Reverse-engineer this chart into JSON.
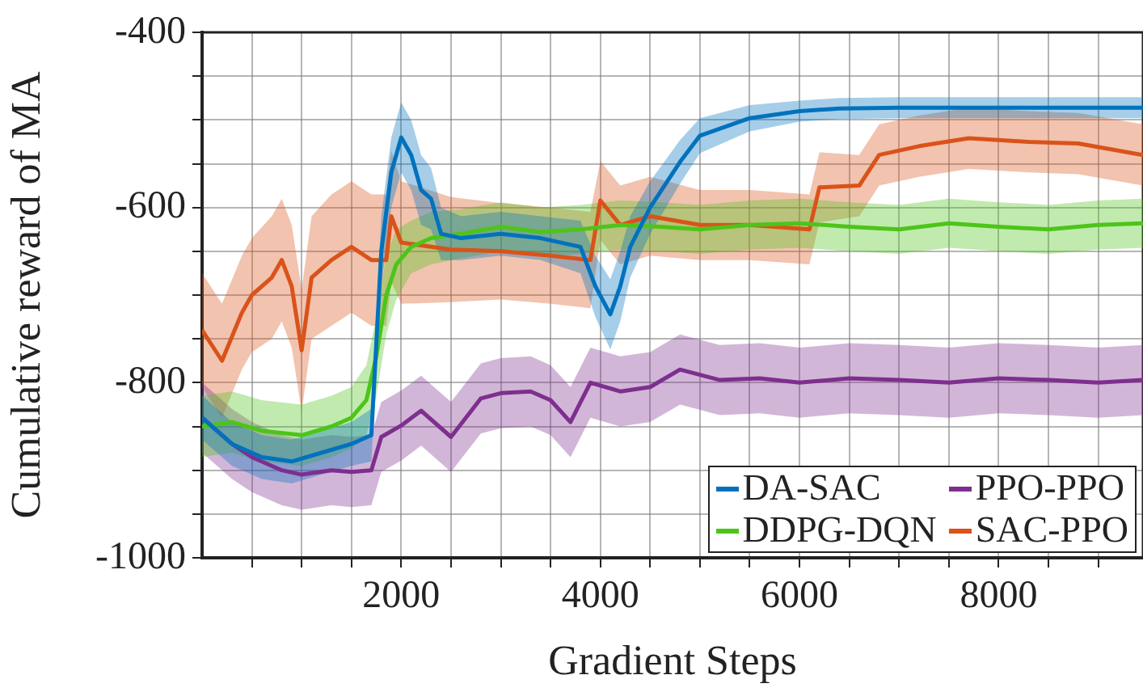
{
  "chart_data": {
    "type": "line",
    "xlabel": "Gradient Steps",
    "ylabel": "Cumulative reward of MA",
    "xlim": [
      0,
      9450
    ],
    "ylim": [
      -1000,
      -400
    ],
    "xticks": [
      {
        "value": 500,
        "label": null
      },
      {
        "value": 1000,
        "label": null
      },
      {
        "value": 1500,
        "label": null
      },
      2000,
      {
        "value": 2500,
        "label": null
      },
      {
        "value": 3000,
        "label": null
      },
      {
        "value": 3500,
        "label": null
      },
      4000,
      {
        "value": 4500,
        "label": null
      },
      {
        "value": 5000,
        "label": null
      },
      {
        "value": 5500,
        "label": null
      },
      6000,
      {
        "value": 6500,
        "label": null
      },
      {
        "value": 7000,
        "label": null
      },
      {
        "value": 7500,
        "label": null
      },
      8000,
      {
        "value": 8500,
        "label": null
      },
      {
        "value": 9000,
        "label": null
      }
    ],
    "yticks": [
      -1000,
      {
        "value": -950,
        "label": null
      },
      {
        "value": -900,
        "label": null
      },
      {
        "value": -850,
        "label": null
      },
      -800,
      {
        "value": -750,
        "label": null
      },
      {
        "value": -700,
        "label": null
      },
      {
        "value": -650,
        "label": null
      },
      -600,
      {
        "value": -550,
        "label": null
      },
      {
        "value": -500,
        "label": null
      },
      {
        "value": -450,
        "label": null
      },
      -400
    ],
    "grid": true,
    "legend": "bottom right",
    "series": [
      {
        "name": "DA-SAC",
        "color": "#0072bd",
        "x": [
          0,
          300,
          600,
          900,
          1200,
          1500,
          1700,
          1800,
          1900,
          2000,
          2100,
          2200,
          2300,
          2400,
          2600,
          3000,
          3400,
          3800,
          3950,
          4100,
          4200,
          4300,
          4500,
          4800,
          5000,
          5500,
          6000,
          6400,
          7000,
          8000,
          9000,
          9450
        ],
        "values": [
          -840,
          -870,
          -885,
          -890,
          -880,
          -870,
          -860,
          -650,
          -560,
          -520,
          -540,
          -580,
          -590,
          -630,
          -635,
          -630,
          -635,
          -645,
          -690,
          -722,
          -690,
          -645,
          -600,
          -548,
          -518,
          -498,
          -490,
          -487,
          -486,
          -486,
          -486,
          -486
        ],
        "lower": [
          -865,
          -895,
          -910,
          -915,
          -905,
          -895,
          -890,
          -690,
          -600,
          -560,
          -580,
          -620,
          -625,
          -660,
          -660,
          -655,
          -660,
          -675,
          -725,
          -762,
          -730,
          -680,
          -630,
          -573,
          -538,
          -513,
          -502,
          -499,
          -498,
          -498,
          -498,
          -498
        ],
        "upper": [
          -815,
          -845,
          -860,
          -865,
          -855,
          -845,
          -830,
          -610,
          -520,
          -480,
          -500,
          -540,
          -555,
          -600,
          -610,
          -605,
          -610,
          -615,
          -655,
          -682,
          -650,
          -610,
          -570,
          -523,
          -498,
          -483,
          -478,
          -475,
          -474,
          -474,
          -474,
          -474
        ]
      },
      {
        "name": "DDPG-DQN",
        "color": "#4dc41a",
        "x": [
          0,
          300,
          600,
          1000,
          1300,
          1500,
          1650,
          1750,
          1850,
          1950,
          2100,
          2300,
          2600,
          3000,
          3400,
          3800,
          4200,
          4600,
          5000,
          5500,
          6000,
          6500,
          7000,
          7500,
          8000,
          8500,
          9000,
          9450
        ],
        "values": [
          -850,
          -845,
          -855,
          -860,
          -850,
          -840,
          -820,
          -770,
          -700,
          -665,
          -645,
          -635,
          -630,
          -622,
          -628,
          -625,
          -620,
          -622,
          -625,
          -620,
          -618,
          -622,
          -625,
          -618,
          -622,
          -625,
          -620,
          -618
        ],
        "lower": [
          -885,
          -880,
          -890,
          -895,
          -885,
          -875,
          -860,
          -815,
          -745,
          -705,
          -675,
          -665,
          -658,
          -650,
          -656,
          -653,
          -648,
          -650,
          -653,
          -648,
          -646,
          -650,
          -653,
          -646,
          -650,
          -653,
          -648,
          -646
        ],
        "upper": [
          -815,
          -810,
          -820,
          -825,
          -815,
          -805,
          -780,
          -725,
          -655,
          -625,
          -615,
          -605,
          -602,
          -594,
          -600,
          -597,
          -592,
          -594,
          -597,
          -592,
          -590,
          -594,
          -597,
          -590,
          -594,
          -597,
          -592,
          -590
        ]
      },
      {
        "name": "PPO-PPO",
        "color": "#7e2f8e",
        "x": [
          0,
          300,
          500,
          800,
          1000,
          1300,
          1500,
          1700,
          1800,
          2000,
          2200,
          2500,
          2800,
          3000,
          3300,
          3500,
          3700,
          3900,
          4200,
          4500,
          4800,
          5200,
          5600,
          6000,
          6500,
          7000,
          7500,
          8000,
          8500,
          9000,
          9450
        ],
        "values": [
          -840,
          -870,
          -885,
          -900,
          -905,
          -900,
          -902,
          -900,
          -862,
          -849,
          -832,
          -862,
          -818,
          -812,
          -810,
          -820,
          -845,
          -800,
          -810,
          -805,
          -785,
          -797,
          -795,
          -800,
          -795,
          -797,
          -800,
          -795,
          -797,
          -800,
          -797
        ],
        "lower": [
          -880,
          -910,
          -925,
          -940,
          -945,
          -940,
          -942,
          -940,
          -902,
          -889,
          -872,
          -902,
          -858,
          -852,
          -850,
          -860,
          -885,
          -840,
          -850,
          -845,
          -825,
          -837,
          -835,
          -840,
          -835,
          -837,
          -840,
          -835,
          -837,
          -840,
          -837
        ],
        "upper": [
          -800,
          -830,
          -845,
          -860,
          -865,
          -860,
          -862,
          -860,
          -822,
          -809,
          -792,
          -822,
          -778,
          -772,
          -770,
          -780,
          -805,
          -760,
          -770,
          -765,
          -745,
          -757,
          -755,
          -760,
          -755,
          -757,
          -760,
          -755,
          -757,
          -760,
          -757
        ]
      },
      {
        "name": "SAC-PPO",
        "color": "#d95319",
        "x": [
          0,
          200,
          400,
          500,
          700,
          800,
          900,
          1000,
          1100,
          1300,
          1500,
          1700,
          1850,
          1900,
          2000,
          2500,
          3000,
          3500,
          3900,
          4000,
          4200,
          4500,
          5000,
          5500,
          6100,
          6200,
          6600,
          6800,
          7200,
          7700,
          8300,
          8800,
          9450
        ],
        "values": [
          -740,
          -775,
          -720,
          -700,
          -680,
          -660,
          -690,
          -763,
          -680,
          -660,
          -645,
          -660,
          -660,
          -610,
          -640,
          -648,
          -650,
          -655,
          -660,
          -592,
          -620,
          -610,
          -620,
          -620,
          -625,
          -577,
          -575,
          -540,
          -530,
          -521,
          -525,
          -527,
          -540
        ],
        "lower": [
          -805,
          -840,
          -785,
          -765,
          -750,
          -730,
          -760,
          -833,
          -750,
          -735,
          -720,
          -735,
          -735,
          -685,
          -710,
          -708,
          -705,
          -710,
          -715,
          -637,
          -665,
          -655,
          -660,
          -660,
          -665,
          -617,
          -610,
          -575,
          -565,
          -556,
          -560,
          -562,
          -575
        ],
        "upper": [
          -675,
          -710,
          -655,
          -635,
          -610,
          -590,
          -620,
          -693,
          -610,
          -585,
          -570,
          -585,
          -585,
          -535,
          -570,
          -588,
          -595,
          -600,
          -605,
          -547,
          -575,
          -565,
          -580,
          -580,
          -585,
          -537,
          -540,
          -505,
          -495,
          -486,
          -490,
          -492,
          -505
        ]
      }
    ]
  }
}
